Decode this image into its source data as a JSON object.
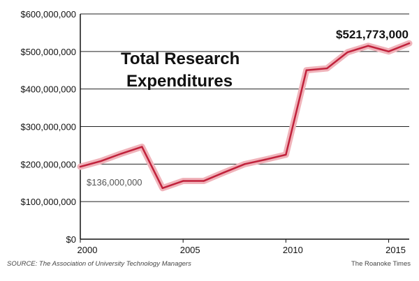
{
  "chart_data": {
    "type": "line",
    "title_line1": "Total Research",
    "title_line2": "Expenditures",
    "x": [
      2000,
      2001,
      2002,
      2003,
      2004,
      2005,
      2006,
      2007,
      2008,
      2009,
      2010,
      2011,
      2012,
      2013,
      2014,
      2015,
      2016
    ],
    "values": [
      193000000,
      208000000,
      228000000,
      246000000,
      136000000,
      155000000,
      155000000,
      178000000,
      200000000,
      212000000,
      225000000,
      450000000,
      455000000,
      498000000,
      515000000,
      500000000,
      521773000
    ],
    "xlim": [
      2000,
      2016
    ],
    "ylim": [
      0,
      600000000
    ],
    "y_ticks": [
      0,
      100000000,
      200000000,
      300000000,
      400000000,
      500000000,
      600000000
    ],
    "y_tick_labels": [
      "$0",
      "$100,000,000",
      "$200,000,000",
      "$300,000,000",
      "$400,000,000",
      "$500,000,000",
      "$600,000,000"
    ],
    "x_ticks": [
      2000,
      2005,
      2010,
      2015
    ],
    "x_tick_labels": [
      "2000",
      "2005",
      "2010",
      "2015"
    ],
    "annotations": {
      "start_label": "$136,000,000",
      "end_label": "$521,773,000"
    },
    "grid": "horizontal",
    "line_color": "#c0213b",
    "halo_color": "#f0b3ba"
  },
  "footer": {
    "source": "SOURCE: The Association of University Technology Managers",
    "credit": "The Roanoke Times"
  }
}
